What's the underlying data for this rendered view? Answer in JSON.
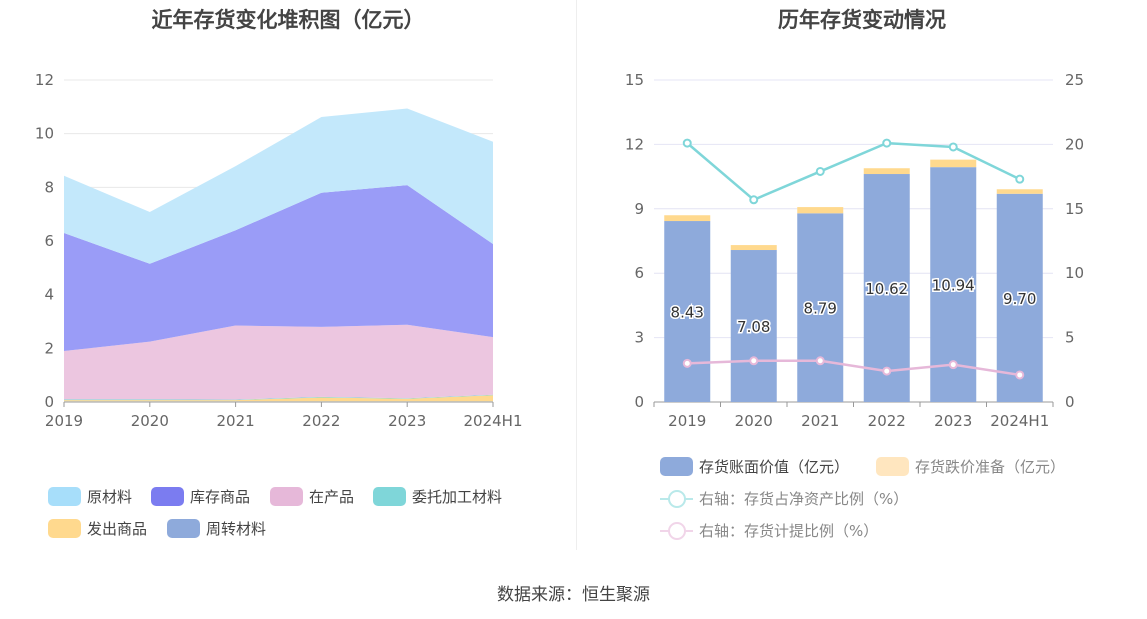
{
  "source_text": "数据来源：恒生聚源",
  "chart_data": [
    {
      "type": "area",
      "title": "近年存货变化堆积图（亿元）",
      "categories": [
        "2019",
        "2020",
        "2021",
        "2022",
        "2023",
        "2024H1"
      ],
      "ylim": [
        0,
        12
      ],
      "yticks": [
        "0",
        "2",
        "4",
        "6",
        "8",
        "10",
        "12"
      ],
      "stacked": true,
      "series": [
        {
          "name": "周转材料",
          "color": "#8eaadb",
          "values": [
            0.02,
            0.02,
            0.02,
            0.02,
            0.02,
            0.02
          ]
        },
        {
          "name": "发出商品",
          "color": "#ffd98e",
          "values": [
            0.05,
            0.05,
            0.05,
            0.15,
            0.1,
            0.23
          ]
        },
        {
          "name": "委托加工材料",
          "color": "#7fd6d9",
          "values": [
            0.03,
            0.03,
            0.02,
            0.02,
            0.02,
            0.02
          ]
        },
        {
          "name": "在产品",
          "color": "#ecc6e0",
          "values": [
            1.8,
            2.15,
            2.76,
            2.61,
            2.74,
            2.15
          ]
        },
        {
          "name": "库存商品",
          "color": "#9a9cf7",
          "values": [
            4.4,
            2.9,
            3.55,
            5.0,
            5.2,
            3.47
          ]
        },
        {
          "name": "原材料",
          "color": "#c3e8fb",
          "values": [
            2.13,
            1.93,
            2.39,
            2.82,
            2.86,
            3.81
          ]
        }
      ],
      "legend": [
        {
          "name": "原材料",
          "color": "#a7defa"
        },
        {
          "name": "库存商品",
          "color": "#7b7cf0"
        },
        {
          "name": "在产品",
          "color": "#e6b8d9"
        },
        {
          "name": "委托加工材料",
          "color": "#7fd6d9"
        },
        {
          "name": "发出商品",
          "color": "#ffd98e"
        },
        {
          "name": "周转材料",
          "color": "#8eaadb"
        }
      ],
      "legend_position": "bottom"
    },
    {
      "type": "bar",
      "title": "历年存货变动情况",
      "categories": [
        "2019",
        "2020",
        "2021",
        "2022",
        "2023",
        "2024H1"
      ],
      "ylim": [
        0,
        15
      ],
      "yticks": [
        "0",
        "3",
        "6",
        "9",
        "12",
        "15"
      ],
      "y2lim": [
        0,
        25
      ],
      "y2ticks": [
        "0",
        "5",
        "10",
        "15",
        "20",
        "25"
      ],
      "stacked": true,
      "series": [
        {
          "name": "存货账面价值（亿元）",
          "color": "#8eaadb",
          "values": [
            8.43,
            7.08,
            8.79,
            10.62,
            10.94,
            9.7
          ],
          "labels": [
            "8.43",
            "7.08",
            "8.79",
            "10.62",
            "10.94",
            "9.70"
          ]
        },
        {
          "name": "存货跌价准备（亿元）",
          "color": "#ffd98e",
          "values": [
            0.27,
            0.23,
            0.29,
            0.27,
            0.35,
            0.21
          ]
        }
      ],
      "line_series": [
        {
          "name": "右轴：存货占净资产比例（%）",
          "color": "#7fd6d9",
          "axis": "right",
          "values": [
            20.1,
            15.7,
            17.9,
            20.1,
            19.8,
            17.3
          ]
        },
        {
          "name": "右轴：存货计提比例（%）",
          "color": "#e6b8d9",
          "axis": "right",
          "values": [
            3.0,
            3.2,
            3.2,
            2.4,
            2.9,
            2.1
          ]
        }
      ],
      "legend_position": "bottom"
    }
  ]
}
